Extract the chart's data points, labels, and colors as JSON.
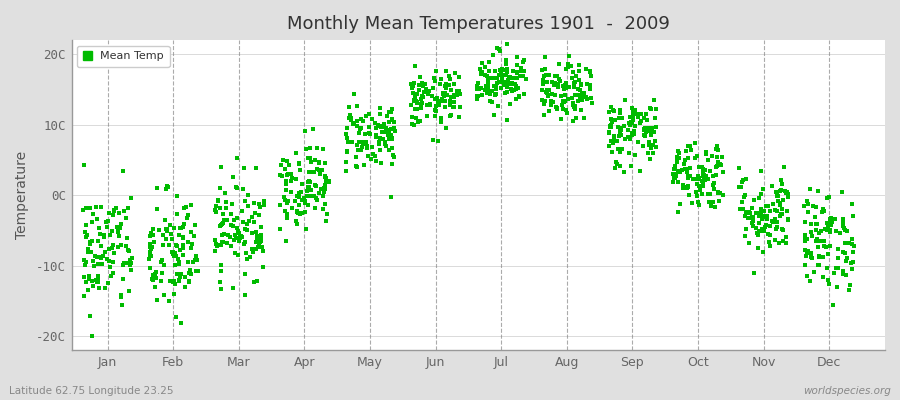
{
  "title": "Monthly Mean Temperatures 1901  -  2009",
  "ylabel": "Temperature",
  "xlabel_labels": [
    "Jan",
    "Feb",
    "Mar",
    "Apr",
    "May",
    "Jun",
    "Jul",
    "Aug",
    "Sep",
    "Oct",
    "Nov",
    "Dec"
  ],
  "ytick_labels": [
    "-20C",
    "-10C",
    "0C",
    "10C",
    "20C"
  ],
  "ytick_values": [
    -20,
    -10,
    0,
    10,
    20
  ],
  "ylim": [
    -22,
    22
  ],
  "fig_bg_color": "#e0e0e0",
  "plot_bg_color": "#f0f0f0",
  "dot_color": "#00bb00",
  "dot_size": 5,
  "legend_label": "Mean Temp",
  "footer_left": "Latitude 62.75 Longitude 23.25",
  "footer_right": "worldspecies.org",
  "monthly_means": [
    -8.0,
    -8.5,
    -4.5,
    1.5,
    8.5,
    13.5,
    16.5,
    14.5,
    9.0,
    3.0,
    -2.5,
    -6.5
  ],
  "monthly_stds": [
    4.5,
    4.5,
    3.5,
    3.0,
    2.5,
    2.0,
    2.0,
    2.0,
    2.5,
    2.5,
    3.0,
    3.5
  ],
  "n_years": 109,
  "random_seed": 42
}
